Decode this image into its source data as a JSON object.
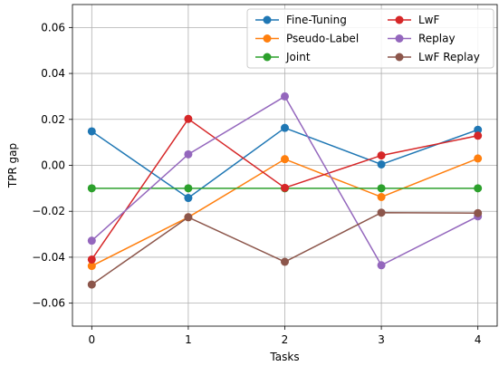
{
  "chart_data": {
    "type": "line",
    "title": "",
    "xlabel": "Tasks",
    "ylabel": "TPR gap",
    "x": [
      0,
      1,
      2,
      3,
      4
    ],
    "xlim": [
      -0.2,
      4.2
    ],
    "ylim": [
      -0.07,
      0.07
    ],
    "xticks": [
      0,
      1,
      2,
      3,
      4
    ],
    "xtick_labels": [
      "0",
      "1",
      "2",
      "3",
      "4"
    ],
    "yticks": [
      -0.06,
      -0.04,
      -0.02,
      0.0,
      0.02,
      0.04,
      0.06
    ],
    "ytick_labels": [
      "−0.06",
      "−0.04",
      "−0.02",
      "0.00",
      "0.02",
      "0.04",
      "0.06"
    ],
    "grid": true,
    "legend_position": "top-right",
    "series": [
      {
        "name": "Fine-Tuning",
        "color": "#1f77b4",
        "values": [
          0.0148,
          -0.0142,
          0.0163,
          0.0004,
          0.0155
        ]
      },
      {
        "name": "Pseudo-Label",
        "color": "#ff7f0e",
        "values": [
          -0.0438,
          -0.0226,
          0.0027,
          -0.0138,
          0.003
        ]
      },
      {
        "name": "Joint",
        "color": "#2ca02c",
        "values": [
          -0.01,
          -0.01,
          -0.01,
          -0.01,
          -0.01
        ]
      },
      {
        "name": "LwF",
        "color": "#d62728",
        "values": [
          -0.041,
          0.0202,
          -0.0098,
          0.0043,
          0.0129
        ]
      },
      {
        "name": "Replay",
        "color": "#9467bd",
        "values": [
          -0.0328,
          0.0048,
          0.03,
          -0.0435,
          -0.0222
        ]
      },
      {
        "name": "LwF Replay",
        "color": "#8c564b",
        "values": [
          -0.0519,
          -0.0226,
          -0.042,
          -0.0206,
          -0.0208
        ]
      }
    ]
  }
}
